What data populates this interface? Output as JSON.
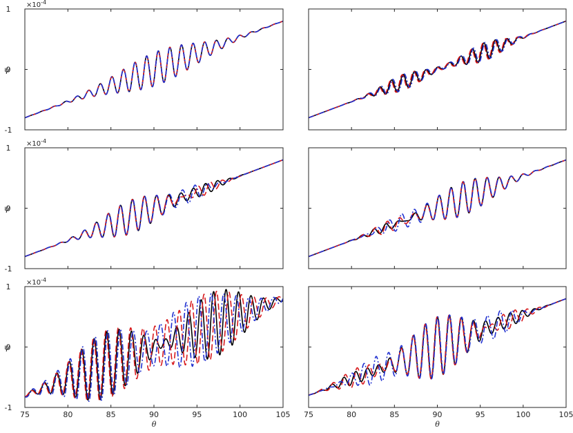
{
  "figure": {
    "x_label": "θ",
    "y_label": "ψ",
    "y_exponent_label": "×10",
    "y_exponent_power": "-4",
    "colors": {
      "series_black": "#000000",
      "series_red": "#d7191c",
      "series_blue": "#1f2fd0",
      "frame": "#262626"
    }
  },
  "chart_data": [
    {
      "type": "line",
      "panel": "top-left",
      "xlim": [
        75,
        105
      ],
      "ylim": [
        -1,
        1
      ],
      "x_ticks": [
        75,
        80,
        85,
        90,
        95,
        100,
        105
      ],
      "show_x_tick_labels": false,
      "y_ticks": [
        -1,
        0,
        1
      ],
      "y_tick_labels": [
        "-1",
        "0",
        "1"
      ],
      "y_scale_text": true,
      "grid": false,
      "trend": [
        [
          75,
          -0.8
        ],
        [
          105,
          0.8
        ]
      ],
      "series": [
        {
          "style": "solid",
          "color": "#000000",
          "packets": [
            {
              "center": 90.5,
              "sigma": 4.6,
              "amp": 0.28,
              "period": 1.35,
              "phase": 0
            }
          ]
        },
        {
          "style": "dashed",
          "color": "#d7191c",
          "packets": [
            {
              "center": 90.5,
              "sigma": 4.6,
              "amp": 0.28,
              "period": 1.35,
              "phase": 0.05
            }
          ]
        },
        {
          "style": "dashdot",
          "color": "#1f2fd0",
          "packets": [
            {
              "center": 90.5,
              "sigma": 4.6,
              "amp": 0.28,
              "period": 1.35,
              "phase": 0
            }
          ]
        }
      ]
    },
    {
      "type": "line",
      "panel": "top-right",
      "xlim": [
        75,
        105
      ],
      "ylim": [
        -1,
        1
      ],
      "x_ticks": [
        75,
        80,
        85,
        90,
        95,
        100,
        105
      ],
      "show_x_tick_labels": false,
      "y_ticks": [
        -1,
        0,
        1
      ],
      "y_tick_labels": [],
      "y_scale_text": false,
      "grid": false,
      "trend": [
        [
          75,
          -0.8
        ],
        [
          105,
          0.8
        ]
      ],
      "series": [
        {
          "style": "solid",
          "color": "#000000",
          "packets": [
            {
              "center": 86.0,
              "sigma": 2.3,
              "amp": 0.13,
              "period": 1.35,
              "phase": 0
            },
            {
              "center": 95.5,
              "sigma": 2.3,
              "amp": 0.15,
              "period": 1.35,
              "phase": 0.4
            }
          ]
        },
        {
          "style": "dashed",
          "color": "#d7191c",
          "packets": [
            {
              "center": 86.0,
              "sigma": 2.3,
              "amp": 0.13,
              "period": 1.35,
              "phase": 0.5
            },
            {
              "center": 95.5,
              "sigma": 2.3,
              "amp": 0.15,
              "period": 1.35,
              "phase": 0.9
            }
          ]
        },
        {
          "style": "dashdot",
          "color": "#1f2fd0",
          "packets": [
            {
              "center": 86.0,
              "sigma": 2.3,
              "amp": 0.13,
              "period": 1.35,
              "phase": -0.6
            },
            {
              "center": 95.5,
              "sigma": 2.3,
              "amp": 0.15,
              "period": 1.35,
              "phase": -0.2
            }
          ]
        }
      ]
    },
    {
      "type": "line",
      "panel": "middle-left",
      "xlim": [
        75,
        105
      ],
      "ylim": [
        -1,
        1
      ],
      "x_ticks": [
        75,
        80,
        85,
        90,
        95,
        100,
        105
      ],
      "show_x_tick_labels": false,
      "y_ticks": [
        -1,
        0,
        1
      ],
      "y_tick_labels": [
        "-1",
        "0",
        "1"
      ],
      "y_scale_text": true,
      "grid": false,
      "trend": [
        [
          75,
          -0.8
        ],
        [
          105,
          0.8
        ]
      ],
      "series": [
        {
          "style": "solid",
          "color": "#000000",
          "packets": [
            {
              "center": 87.5,
              "sigma": 3.3,
              "amp": 0.28,
              "period": 1.4,
              "phase": 0
            },
            {
              "center": 96.0,
              "sigma": 1.8,
              "amp": 0.08,
              "period": 1.4,
              "phase": 0
            }
          ]
        },
        {
          "style": "dashed",
          "color": "#d7191c",
          "packets": [
            {
              "center": 87.5,
              "sigma": 3.3,
              "amp": 0.28,
              "period": 1.4,
              "phase": 0.1
            },
            {
              "center": 95.5,
              "sigma": 1.8,
              "amp": 0.11,
              "period": 1.4,
              "phase": 1.6
            }
          ]
        },
        {
          "style": "dashdot",
          "color": "#1f2fd0",
          "packets": [
            {
              "center": 87.5,
              "sigma": 3.3,
              "amp": 0.28,
              "period": 1.4,
              "phase": -0.1
            },
            {
              "center": 94.5,
              "sigma": 1.8,
              "amp": 0.12,
              "period": 1.4,
              "phase": -1.4
            }
          ]
        }
      ]
    },
    {
      "type": "line",
      "panel": "middle-right",
      "xlim": [
        75,
        105
      ],
      "ylim": [
        -1,
        1
      ],
      "x_ticks": [
        75,
        80,
        85,
        90,
        95,
        100,
        105
      ],
      "show_x_tick_labels": false,
      "y_ticks": [
        -1,
        0,
        1
      ],
      "y_tick_labels": [],
      "y_scale_text": false,
      "grid": false,
      "trend": [
        [
          75,
          -0.8
        ],
        [
          105,
          0.8
        ]
      ],
      "series": [
        {
          "style": "solid",
          "color": "#000000",
          "packets": [
            {
              "center": 93.0,
              "sigma": 3.4,
              "amp": 0.28,
              "period": 1.4,
              "phase": 0
            },
            {
              "center": 84.0,
              "sigma": 1.9,
              "amp": 0.07,
              "period": 1.4,
              "phase": 0
            }
          ]
        },
        {
          "style": "dashed",
          "color": "#d7191c",
          "packets": [
            {
              "center": 93.0,
              "sigma": 3.4,
              "amp": 0.28,
              "period": 1.4,
              "phase": 0.1
            },
            {
              "center": 84.5,
              "sigma": 1.9,
              "amp": 0.1,
              "period": 1.4,
              "phase": 1.6
            }
          ]
        },
        {
          "style": "dashdot",
          "color": "#1f2fd0",
          "packets": [
            {
              "center": 93.0,
              "sigma": 3.4,
              "amp": 0.28,
              "period": 1.4,
              "phase": -0.1
            },
            {
              "center": 85.5,
              "sigma": 1.9,
              "amp": 0.11,
              "period": 1.4,
              "phase": -1.4
            }
          ]
        }
      ]
    },
    {
      "type": "line",
      "panel": "bottom-left",
      "xlim": [
        75,
        105
      ],
      "ylim": [
        -1,
        1
      ],
      "x_ticks": [
        75,
        80,
        85,
        90,
        95,
        100,
        105
      ],
      "x_tick_labels": [
        "75",
        "80",
        "85",
        "90",
        "95",
        "100",
        "105"
      ],
      "show_x_tick_labels": true,
      "y_ticks": [
        -1,
        0,
        1
      ],
      "y_tick_labels": [
        "-1",
        "0",
        "1"
      ],
      "y_scale_text": true,
      "grid": false,
      "trend": [
        [
          75,
          -0.8
        ],
        [
          105,
          0.8
        ]
      ],
      "series": [
        {
          "style": "solid",
          "color": "#000000",
          "packets": [
            {
              "center": 84.5,
              "sigma": 3.8,
              "amp": 0.55,
              "period": 1.45,
              "phase": 0
            },
            {
              "center": 97.0,
              "sigma": 3.4,
              "amp": 0.55,
              "period": 1.45,
              "phase": 0.3
            }
          ]
        },
        {
          "style": "dashed",
          "color": "#d7191c",
          "packets": [
            {
              "center": 84.5,
              "sigma": 3.8,
              "amp": 0.56,
              "period": 1.45,
              "phase": 0.35
            },
            {
              "center": 96.0,
              "sigma": 4.0,
              "amp": 0.56,
              "period": 1.45,
              "phase": 0.8
            }
          ]
        },
        {
          "style": "dashdot",
          "color": "#1f2fd0",
          "packets": [
            {
              "center": 84.5,
              "sigma": 4.0,
              "amp": 0.57,
              "period": 1.45,
              "phase": -0.5
            },
            {
              "center": 95.0,
              "sigma": 4.5,
              "amp": 0.57,
              "period": 1.45,
              "phase": -0.9
            }
          ]
        }
      ]
    },
    {
      "type": "line",
      "panel": "bottom-right",
      "xlim": [
        75,
        105
      ],
      "ylim": [
        -1,
        1
      ],
      "x_ticks": [
        75,
        80,
        85,
        90,
        95,
        100,
        105
      ],
      "x_tick_labels": [
        "75",
        "80",
        "85",
        "90",
        "95",
        "100",
        "105"
      ],
      "show_x_tick_labels": true,
      "y_ticks": [
        -1,
        0,
        1
      ],
      "y_tick_labels": [],
      "y_scale_text": false,
      "grid": false,
      "trend": [
        [
          75,
          -0.8
        ],
        [
          105,
          0.8
        ]
      ],
      "series": [
        {
          "style": "solid",
          "color": "#000000",
          "packets": [
            {
              "center": 90.0,
              "sigma": 3.2,
              "amp": 0.5,
              "period": 1.4,
              "phase": 0
            },
            {
              "center": 80.5,
              "sigma": 2.0,
              "amp": 0.1,
              "period": 1.4,
              "phase": 0
            },
            {
              "center": 98.5,
              "sigma": 1.8,
              "amp": 0.1,
              "period": 1.4,
              "phase": 0
            }
          ]
        },
        {
          "style": "dashed",
          "color": "#d7191c",
          "packets": [
            {
              "center": 90.0,
              "sigma": 3.2,
              "amp": 0.5,
              "period": 1.4,
              "phase": 0.15
            },
            {
              "center": 81.0,
              "sigma": 2.2,
              "amp": 0.16,
              "period": 1.4,
              "phase": 1.5
            },
            {
              "center": 98.0,
              "sigma": 2.0,
              "amp": 0.16,
              "period": 1.4,
              "phase": 1.5
            }
          ]
        },
        {
          "style": "dashdot",
          "color": "#1f2fd0",
          "packets": [
            {
              "center": 90.0,
              "sigma": 3.2,
              "amp": 0.5,
              "period": 1.4,
              "phase": -0.15
            },
            {
              "center": 82.5,
              "sigma": 2.0,
              "amp": 0.2,
              "period": 1.4,
              "phase": -1.5
            },
            {
              "center": 97.0,
              "sigma": 2.0,
              "amp": 0.2,
              "period": 1.4,
              "phase": -1.5
            }
          ]
        }
      ]
    }
  ]
}
